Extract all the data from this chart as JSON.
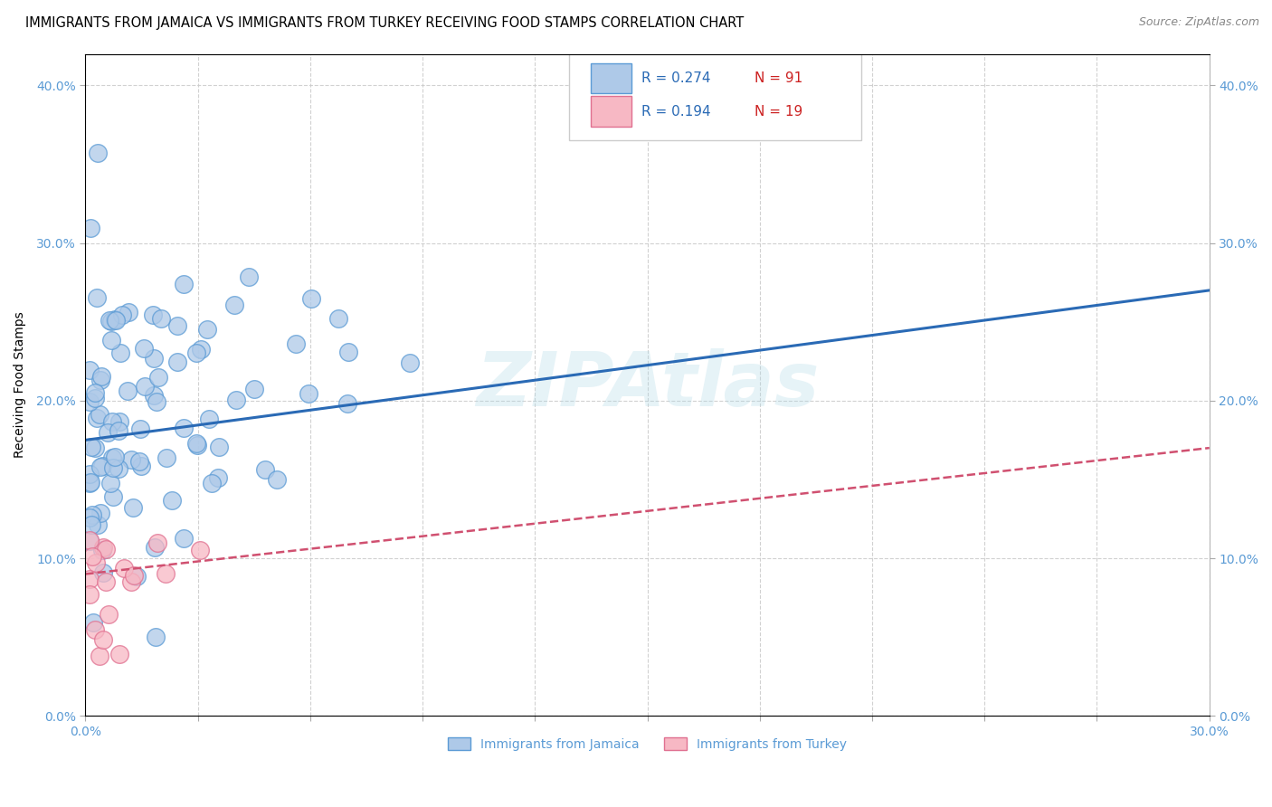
{
  "title": "IMMIGRANTS FROM JAMAICA VS IMMIGRANTS FROM TURKEY RECEIVING FOOD STAMPS CORRELATION CHART",
  "source": "Source: ZipAtlas.com",
  "ylabel": "Receiving Food Stamps",
  "xlim": [
    0.0,
    0.3
  ],
  "ylim": [
    0.0,
    0.42
  ],
  "x_ticks": [
    0.0,
    0.03,
    0.06,
    0.09,
    0.12,
    0.15,
    0.18,
    0.21,
    0.24,
    0.27,
    0.3
  ],
  "x_tick_labels": [
    "0.0%",
    "",
    "",
    "",
    "",
    "",
    "",
    "",
    "",
    "",
    "30.0%"
  ],
  "y_ticks": [
    0.0,
    0.1,
    0.2,
    0.3,
    0.4
  ],
  "y_tick_labels": [
    "0.0%",
    "10.0%",
    "20.0%",
    "30.0%",
    "40.0%"
  ],
  "jamaica_fill": "#aec9e8",
  "jamaica_edge": "#5b9bd5",
  "turkey_fill": "#f7b8c4",
  "turkey_edge": "#e07090",
  "jamaica_line_color": "#2a6ab5",
  "turkey_line_color": "#d05070",
  "tick_color": "#5b9bd5",
  "watermark": "ZIPAtlas",
  "jamaica_label": "Immigrants from Jamaica",
  "turkey_label": "Immigrants from Turkey",
  "jamaica_R": "R = 0.274",
  "jamaica_N": "N = 91",
  "turkey_R": "R = 0.194",
  "turkey_N": "N = 19",
  "seed_jamaica": 42,
  "seed_turkey": 7
}
